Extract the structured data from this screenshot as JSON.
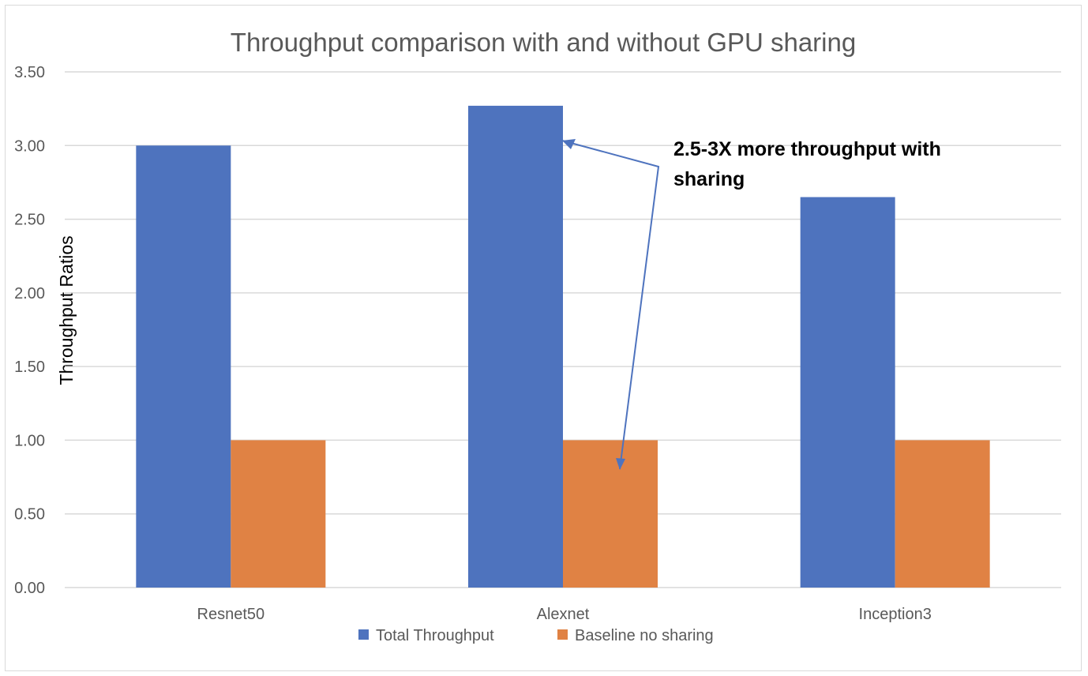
{
  "chart_data": {
    "type": "bar",
    "title": "Throughput comparison with and without GPU sharing",
    "xlabel": "",
    "ylabel": "Throughput Ratios",
    "categories": [
      "Resnet50",
      "Alexnet",
      "Inception3"
    ],
    "series": [
      {
        "name": "Total Throughput",
        "values": [
          3.0,
          3.27,
          2.65
        ],
        "color": "#4e73be"
      },
      {
        "name": "Baseline no sharing",
        "values": [
          1.0,
          1.0,
          1.0
        ],
        "color": "#e08244"
      }
    ],
    "ylim": [
      0,
      3.5
    ],
    "yticks": [
      "0.00",
      "0.50",
      "1.00",
      "1.50",
      "2.00",
      "2.50",
      "3.00",
      "3.50"
    ],
    "grid": true,
    "legend": "bottom",
    "annotation": {
      "lines": [
        "2.5-3X more throughput with",
        "sharing"
      ],
      "color": "#4e73be"
    }
  }
}
